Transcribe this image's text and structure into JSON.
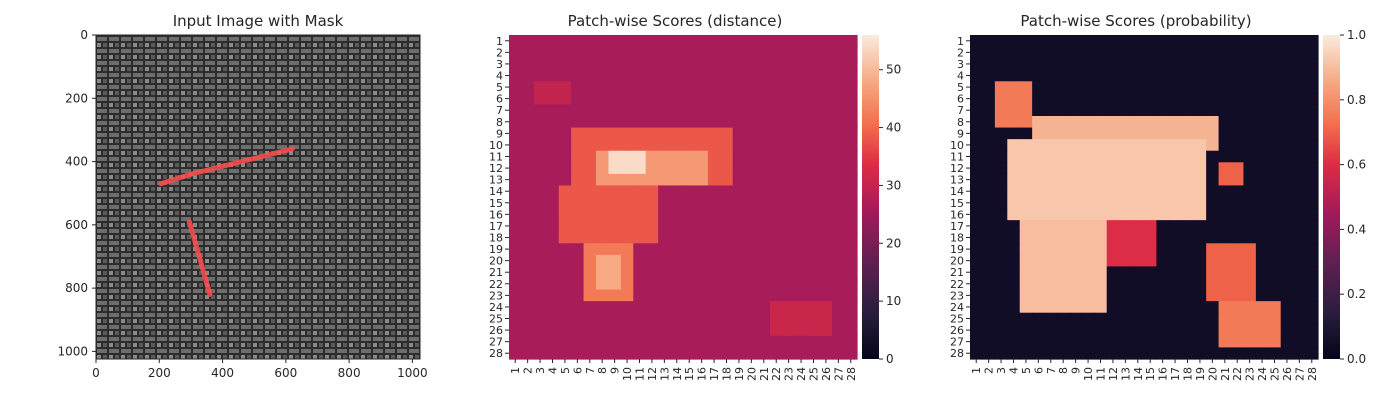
{
  "chart_data": [
    {
      "type": "image",
      "title": "Input Image with Mask",
      "x_ticks": [
        "0",
        "200",
        "400",
        "600",
        "800",
        "1000"
      ],
      "y_ticks": [
        "0",
        "200",
        "400",
        "600",
        "800",
        "1000"
      ],
      "xlim": [
        0,
        1024
      ],
      "ylim": [
        1024,
        0
      ],
      "mask_color": "#ff4d4d",
      "mask_segments": [
        {
          "from": [
            205,
            470
          ],
          "to": [
            300,
            440
          ]
        },
        {
          "from": [
            300,
            440
          ],
          "to": [
            620,
            360
          ]
        },
        {
          "from": [
            295,
            590
          ],
          "to": [
            360,
            820
          ]
        }
      ]
    },
    {
      "type": "heatmap",
      "title": "Patch-wise Scores (distance)",
      "rows": [
        "1",
        "2",
        "3",
        "4",
        "5",
        "6",
        "7",
        "8",
        "9",
        "10",
        "11",
        "12",
        "13",
        "14",
        "15",
        "16",
        "17",
        "18",
        "19",
        "20",
        "21",
        "22",
        "23",
        "24",
        "25",
        "26",
        "27",
        "28"
      ],
      "cols": [
        "1",
        "2",
        "3",
        "4",
        "5",
        "6",
        "7",
        "8",
        "9",
        "10",
        "11",
        "12",
        "13",
        "14",
        "15",
        "16",
        "17",
        "18",
        "19",
        "20",
        "21",
        "22",
        "23",
        "24",
        "25",
        "26",
        "27",
        "28"
      ],
      "colorbar": {
        "min": 0,
        "max": 56,
        "ticks": [
          "0",
          "10",
          "20",
          "30",
          "40",
          "50"
        ],
        "tick_values": [
          0,
          10,
          20,
          30,
          40,
          50
        ]
      },
      "colormap": "rocket",
      "baseline": 26,
      "regions": [
        {
          "rows": [
            9,
            13
          ],
          "cols": [
            6,
            18
          ],
          "value": 38
        },
        {
          "rows": [
            11,
            13
          ],
          "cols": [
            8,
            16
          ],
          "value": 46
        },
        {
          "rows": [
            11,
            12
          ],
          "cols": [
            9,
            11
          ],
          "value": 54
        },
        {
          "rows": [
            14,
            18
          ],
          "cols": [
            5,
            12
          ],
          "value": 38
        },
        {
          "rows": [
            19,
            23
          ],
          "cols": [
            7,
            10
          ],
          "value": 42
        },
        {
          "rows": [
            20,
            22
          ],
          "cols": [
            8,
            9
          ],
          "value": 48
        },
        {
          "rows": [
            24,
            26
          ],
          "cols": [
            22,
            26
          ],
          "value": 31
        },
        {
          "rows": [
            5,
            6
          ],
          "cols": [
            3,
            5
          ],
          "value": 30
        }
      ]
    },
    {
      "type": "heatmap",
      "title": "Patch-wise Scores (probability)",
      "rows": [
        "1",
        "2",
        "3",
        "4",
        "5",
        "6",
        "7",
        "8",
        "9",
        "10",
        "11",
        "12",
        "13",
        "14",
        "15",
        "16",
        "17",
        "18",
        "19",
        "20",
        "21",
        "22",
        "23",
        "24",
        "25",
        "26",
        "27",
        "28"
      ],
      "cols": [
        "1",
        "2",
        "3",
        "4",
        "5",
        "6",
        "7",
        "8",
        "9",
        "10",
        "11",
        "12",
        "13",
        "14",
        "15",
        "16",
        "17",
        "18",
        "19",
        "20",
        "21",
        "22",
        "23",
        "24",
        "25",
        "26",
        "27",
        "28"
      ],
      "colorbar": {
        "min": 0.0,
        "max": 1.0,
        "ticks": [
          "0.0",
          "0.2",
          "0.4",
          "0.6",
          "0.8",
          "1.0"
        ],
        "tick_values": [
          0.0,
          0.2,
          0.4,
          0.6,
          0.8,
          1.0
        ]
      },
      "colormap": "rocket",
      "baseline": 0.05,
      "regions": [
        {
          "rows": [
            5,
            8
          ],
          "cols": [
            3,
            5
          ],
          "value": 0.75
        },
        {
          "rows": [
            8,
            10
          ],
          "cols": [
            6,
            20
          ],
          "value": 0.88
        },
        {
          "rows": [
            10,
            16
          ],
          "cols": [
            4,
            19
          ],
          "value": 0.92
        },
        {
          "rows": [
            17,
            24
          ],
          "cols": [
            5,
            11
          ],
          "value": 0.9
        },
        {
          "rows": [
            17,
            20
          ],
          "cols": [
            12,
            15
          ],
          "value": 0.6
        },
        {
          "rows": [
            19,
            23
          ],
          "cols": [
            20,
            23
          ],
          "value": 0.7
        },
        {
          "rows": [
            24,
            27
          ],
          "cols": [
            21,
            25
          ],
          "value": 0.75
        },
        {
          "rows": [
            12,
            13
          ],
          "cols": [
            21,
            22
          ],
          "value": 0.7
        }
      ]
    }
  ]
}
